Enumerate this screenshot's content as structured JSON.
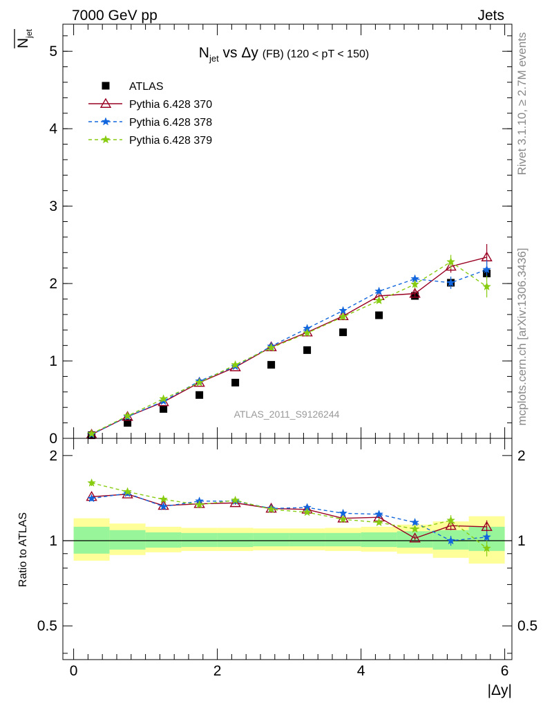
{
  "header": {
    "left": "7000 GeV pp",
    "right": "Jets"
  },
  "side_labels": {
    "top": "Rivet 3.1.10, ≥ 2.7M events",
    "bottom": "mcplots.cern.ch [arXiv:1306.3436]"
  },
  "colors": {
    "data": "#000000",
    "p370": "#990022",
    "p378": "#1166dd",
    "p379": "#88cc11",
    "band_inner": "#99f599",
    "band_outer": "#ffff99"
  },
  "chart_data": [
    {
      "type": "scatter",
      "title_main": "N",
      "title_sub": "jet",
      "title_vs": " vs Δy ",
      "title_fb": "(FB)",
      "title_range": " (120 < pT < 150)",
      "ylabel_main": "N",
      "ylabel_sub": "jet",
      "watermark": "ATLAS_2011_S9126244",
      "xlim": [
        -0.15,
        6.1
      ],
      "ylim": [
        0,
        5.35
      ],
      "yticks": [
        {
          "v": 0,
          "label": "0"
        },
        {
          "v": 1,
          "label": "1"
        },
        {
          "v": 2,
          "label": "2"
        },
        {
          "v": 3,
          "label": "3"
        },
        {
          "v": 4,
          "label": "4"
        },
        {
          "v": 5,
          "label": "5"
        }
      ],
      "legend_position": "top-left",
      "x": [
        0.25,
        0.75,
        1.25,
        1.75,
        2.25,
        2.75,
        3.25,
        3.75,
        4.25,
        4.75,
        5.25,
        5.75
      ],
      "series": [
        {
          "name": "ATLAS",
          "key": "data",
          "marker": "square",
          "line": "none",
          "values": [
            0.04,
            0.2,
            0.38,
            0.56,
            0.72,
            0.95,
            1.14,
            1.37,
            1.59,
            1.84,
            2.01,
            2.13
          ],
          "errors": [
            0.01,
            0.01,
            0.01,
            0.01,
            0.01,
            0.02,
            0.02,
            0.02,
            0.02,
            0.03,
            0.04,
            0.05
          ]
        },
        {
          "name": "Pythia 6.428 370",
          "key": "p370",
          "marker": "triangle",
          "line": "solid",
          "values": [
            0.05,
            0.28,
            0.47,
            0.72,
            0.92,
            1.18,
            1.37,
            1.58,
            1.84,
            1.87,
            2.22,
            2.34
          ],
          "errors": [
            0.01,
            0.01,
            0.01,
            0.01,
            0.01,
            0.02,
            0.02,
            0.02,
            0.03,
            0.04,
            0.08,
            0.17
          ]
        },
        {
          "name": "Pythia 6.428 378",
          "key": "p378",
          "marker": "star",
          "line": "dashed",
          "values": [
            0.05,
            0.28,
            0.48,
            0.74,
            0.93,
            1.19,
            1.42,
            1.65,
            1.9,
            2.06,
            2.01,
            2.18
          ],
          "errors": [
            0.01,
            0.01,
            0.01,
            0.01,
            0.01,
            0.02,
            0.02,
            0.02,
            0.03,
            0.05,
            0.08,
            0.12
          ]
        },
        {
          "name": "Pythia 6.428 379",
          "key": "p379",
          "marker": "star",
          "line": "dashed",
          "values": [
            0.06,
            0.29,
            0.51,
            0.72,
            0.95,
            1.17,
            1.36,
            1.57,
            1.78,
            1.99,
            2.28,
            1.96
          ],
          "errors": [
            0.01,
            0.01,
            0.01,
            0.01,
            0.01,
            0.02,
            0.02,
            0.02,
            0.03,
            0.05,
            0.09,
            0.14
          ]
        }
      ]
    },
    {
      "type": "scatter",
      "ylabel": "Ratio to ATLAS",
      "xlabel": "|Δy|",
      "xlim": [
        -0.15,
        6.1
      ],
      "ylim": [
        0.38,
        2.3
      ],
      "yscale": "log",
      "yticks": [
        {
          "v": 0.5,
          "label": "0.5"
        },
        {
          "v": 1,
          "label": "1"
        },
        {
          "v": 2,
          "label": "2"
        }
      ],
      "xticks": [
        {
          "v": 0,
          "label": "0"
        },
        {
          "v": 2,
          "label": "2"
        },
        {
          "v": 4,
          "label": "4"
        },
        {
          "v": 6,
          "label": "6"
        }
      ],
      "bins": [
        [
          0,
          0.5
        ],
        [
          0.5,
          1
        ],
        [
          1,
          1.5
        ],
        [
          1.5,
          2
        ],
        [
          2,
          2.5
        ],
        [
          2.5,
          3
        ],
        [
          3,
          3.5
        ],
        [
          3.5,
          4
        ],
        [
          4,
          4.5
        ],
        [
          4.5,
          5
        ],
        [
          5,
          5.5
        ],
        [
          5.5,
          6
        ]
      ],
      "band_inner": [
        [
          0.9,
          1.12
        ],
        [
          0.93,
          1.09
        ],
        [
          0.945,
          1.07
        ],
        [
          0.95,
          1.065
        ],
        [
          0.95,
          1.065
        ],
        [
          0.955,
          1.065
        ],
        [
          0.955,
          1.065
        ],
        [
          0.955,
          1.065
        ],
        [
          0.95,
          1.07
        ],
        [
          0.945,
          1.08
        ],
        [
          0.93,
          1.09
        ],
        [
          0.92,
          1.12
        ]
      ],
      "band_outer": [
        [
          0.85,
          1.2
        ],
        [
          0.89,
          1.15
        ],
        [
          0.91,
          1.12
        ],
        [
          0.92,
          1.11
        ],
        [
          0.92,
          1.11
        ],
        [
          0.925,
          1.105
        ],
        [
          0.925,
          1.105
        ],
        [
          0.92,
          1.11
        ],
        [
          0.915,
          1.12
        ],
        [
          0.9,
          1.14
        ],
        [
          0.87,
          1.17
        ],
        [
          0.83,
          1.22
        ]
      ],
      "x": [
        0.25,
        0.75,
        1.25,
        1.75,
        2.25,
        2.75,
        3.25,
        3.75,
        4.25,
        4.75,
        5.25,
        5.75
      ],
      "series": [
        {
          "name": "Pythia 6.428 370",
          "key": "p370",
          "marker": "triangle",
          "line": "solid",
          "values": [
            1.43,
            1.46,
            1.33,
            1.35,
            1.36,
            1.3,
            1.29,
            1.2,
            1.21,
            1.02,
            1.13,
            1.12
          ],
          "errors": [
            0.03,
            0.02,
            0.02,
            0.02,
            0.02,
            0.02,
            0.02,
            0.02,
            0.02,
            0.02,
            0.04,
            0.06
          ]
        },
        {
          "name": "Pythia 6.428 378",
          "key": "p378",
          "marker": "star",
          "line": "dashed",
          "values": [
            1.41,
            1.47,
            1.32,
            1.38,
            1.38,
            1.3,
            1.31,
            1.25,
            1.24,
            1.16,
            1.0,
            1.03
          ],
          "errors": [
            0.03,
            0.02,
            0.02,
            0.02,
            0.02,
            0.02,
            0.02,
            0.02,
            0.02,
            0.02,
            0.04,
            0.05
          ]
        },
        {
          "name": "Pythia 6.428 379",
          "key": "p379",
          "marker": "star",
          "line": "dashed",
          "values": [
            1.6,
            1.49,
            1.4,
            1.34,
            1.39,
            1.29,
            1.26,
            1.19,
            1.16,
            1.1,
            1.18,
            0.94
          ],
          "errors": [
            0.04,
            0.02,
            0.02,
            0.02,
            0.02,
            0.02,
            0.02,
            0.02,
            0.02,
            0.02,
            0.05,
            0.06
          ]
        }
      ]
    }
  ]
}
